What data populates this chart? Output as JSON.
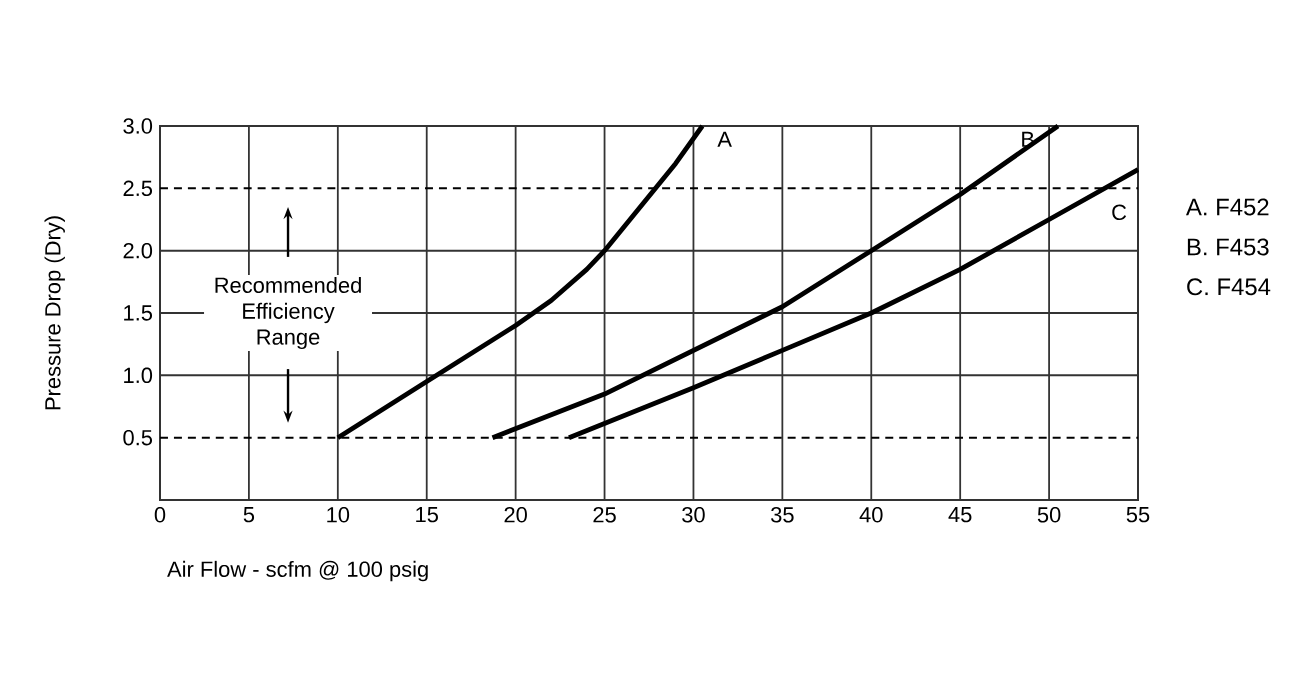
{
  "chart_data": {
    "type": "line",
    "xlabel": "Air Flow - scfm @ 100 psig",
    "ylabel": "Pressure Drop (Dry)",
    "xlim": [
      0,
      55
    ],
    "xticks": [
      0,
      5,
      10,
      15,
      20,
      25,
      30,
      35,
      40,
      45,
      50,
      55
    ],
    "ylim": [
      0,
      3
    ],
    "yticks": [
      0.5,
      {
        "value": 1,
        "label": "1.0"
      },
      1.5,
      {
        "value": 2,
        "label": "2.0"
      },
      2.5,
      {
        "value": 3,
        "label": "3.0"
      }
    ],
    "grid": "x",
    "marker": "none",
    "line_style": "solid",
    "ref_lines": [
      {
        "axis": "y",
        "value": 0.5,
        "line_style": "dashed",
        "color": "#000000"
      },
      {
        "axis": "y",
        "value": 1,
        "line_style": "solid",
        "color": "#333333"
      },
      {
        "axis": "y",
        "value": 1.5,
        "line_style": "solid",
        "color": "#333333"
      },
      {
        "axis": "y",
        "value": 2,
        "line_style": "solid",
        "color": "#333333"
      },
      {
        "axis": "y",
        "value": 2.5,
        "line_style": "dashed",
        "color": "#000000"
      }
    ],
    "annotations": [
      "Recommended Efficiency Range",
      "A. F452",
      "B. F453",
      "C. F454"
    ],
    "series": [
      {
        "name": "A",
        "color": "#000000",
        "x": [
          10,
          15,
          20,
          22,
          24,
          25,
          27,
          29,
          30.5
        ],
        "values": [
          0.5,
          0.95,
          1.4,
          1.6,
          1.85,
          2.0,
          2.35,
          2.7,
          3.0
        ]
      },
      {
        "name": "B",
        "color": "#000000",
        "x": [
          18.7,
          25,
          30,
          35,
          40,
          45,
          50.5
        ],
        "values": [
          0.5,
          0.85,
          1.2,
          1.55,
          2.0,
          2.45,
          3.0
        ]
      },
      {
        "name": "C",
        "color": "#000000",
        "x": [
          23,
          30,
          35,
          40,
          45,
          50,
          55
        ],
        "values": [
          0.5,
          0.9,
          1.2,
          1.5,
          1.85,
          2.25,
          2.65
        ]
      }
    ]
  }
}
